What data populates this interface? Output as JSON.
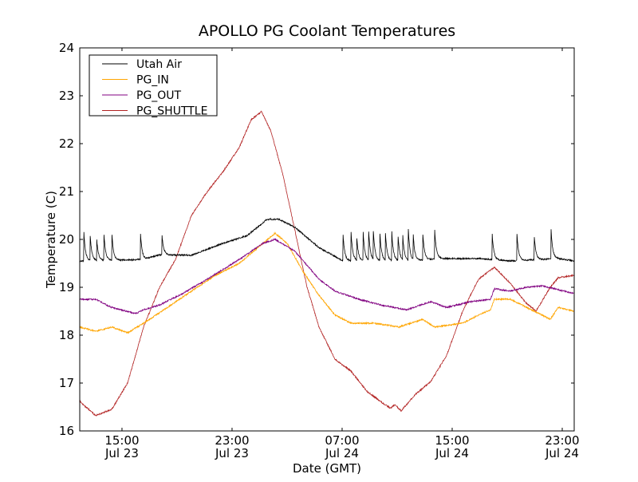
{
  "chart_data": {
    "type": "line",
    "title": "APOLLO PG Coolant Temperatures",
    "xlabel": "Date (GMT)",
    "ylabel": "Temperature (C)",
    "x_units": "hours since Jul 23 00:00 GMT",
    "xlim": [
      11.93,
      47.87
    ],
    "ylim": [
      16,
      24
    ],
    "yticks": [
      16,
      17,
      18,
      19,
      20,
      21,
      22,
      23,
      24
    ],
    "xticks": [
      {
        "value": 15,
        "time": "15:00",
        "date": "Jul 23"
      },
      {
        "value": 23,
        "time": "23:00",
        "date": "Jul 23"
      },
      {
        "value": 31,
        "time": "07:00",
        "date": "Jul 24"
      },
      {
        "value": 39,
        "time": "15:00",
        "date": "Jul 24"
      },
      {
        "value": 47,
        "time": "23:00",
        "date": "Jul 24"
      }
    ],
    "grid": false,
    "legend_position": "top-left",
    "series": [
      {
        "name": "Utah Air",
        "color": "#000000",
        "points": [
          [
            11.93,
            19.55
          ],
          [
            16.57,
            19.58
          ],
          [
            17.73,
            19.68
          ],
          [
            20.05,
            19.67
          ],
          [
            22.36,
            19.92
          ],
          [
            24.1,
            20.08
          ],
          [
            25.55,
            20.42
          ],
          [
            26.42,
            20.42
          ],
          [
            27.58,
            20.25
          ],
          [
            29.32,
            19.83
          ],
          [
            31.06,
            19.55
          ],
          [
            33.96,
            19.55
          ],
          [
            36.28,
            19.55
          ],
          [
            38.02,
            19.6
          ],
          [
            40.92,
            19.6
          ],
          [
            43.23,
            19.55
          ],
          [
            46.71,
            19.6
          ],
          [
            47.87,
            19.55
          ]
        ],
        "spikes": [
          [
            12.22,
            20.2
          ],
          [
            12.68,
            20.1
          ],
          [
            13.15,
            20.05
          ],
          [
            13.67,
            20.2
          ],
          [
            14.25,
            20.2
          ],
          [
            16.34,
            20.15
          ],
          [
            17.9,
            20.12
          ],
          [
            31.06,
            20.15
          ],
          [
            31.64,
            20.2
          ],
          [
            32.05,
            20.1
          ],
          [
            32.51,
            20.25
          ],
          [
            32.92,
            20.2
          ],
          [
            33.26,
            20.2
          ],
          [
            33.73,
            20.2
          ],
          [
            34.13,
            20.2
          ],
          [
            34.6,
            20.2
          ],
          [
            35.06,
            20.1
          ],
          [
            35.41,
            20.05
          ],
          [
            35.81,
            20.2
          ],
          [
            36.16,
            20.1
          ],
          [
            36.86,
            20.15
          ],
          [
            37.73,
            20.2
          ],
          [
            41.9,
            20.15
          ],
          [
            43.7,
            20.15
          ],
          [
            44.97,
            20.05
          ],
          [
            46.19,
            20.2
          ]
        ]
      },
      {
        "name": "PG_IN",
        "color": "#ffa500",
        "points": [
          [
            11.93,
            18.17
          ],
          [
            13.09,
            18.08
          ],
          [
            14.25,
            18.17
          ],
          [
            15.41,
            18.05
          ],
          [
            16.57,
            18.25
          ],
          [
            18.31,
            18.58
          ],
          [
            20.05,
            18.92
          ],
          [
            21.79,
            19.25
          ],
          [
            23.52,
            19.5
          ],
          [
            25.26,
            19.92
          ],
          [
            26.13,
            20.13
          ],
          [
            27.0,
            19.92
          ],
          [
            28.16,
            19.33
          ],
          [
            29.32,
            18.83
          ],
          [
            30.48,
            18.42
          ],
          [
            31.64,
            18.25
          ],
          [
            33.38,
            18.25
          ],
          [
            35.12,
            18.17
          ],
          [
            36.86,
            18.33
          ],
          [
            37.73,
            18.17
          ],
          [
            39.76,
            18.25
          ],
          [
            40.92,
            18.42
          ],
          [
            41.79,
            18.53
          ],
          [
            42.07,
            18.75
          ],
          [
            43.23,
            18.75
          ],
          [
            44.97,
            18.5
          ],
          [
            46.13,
            18.33
          ],
          [
            46.71,
            18.58
          ],
          [
            47.87,
            18.5
          ]
        ]
      },
      {
        "name": "PG_OUT",
        "color": "#800080",
        "points": [
          [
            11.93,
            18.75
          ],
          [
            13.09,
            18.75
          ],
          [
            14.25,
            18.58
          ],
          [
            15.99,
            18.45
          ],
          [
            16.57,
            18.53
          ],
          [
            17.73,
            18.63
          ],
          [
            19.47,
            18.88
          ],
          [
            21.21,
            19.17
          ],
          [
            23.52,
            19.58
          ],
          [
            25.26,
            19.92
          ],
          [
            26.13,
            20.0
          ],
          [
            27.58,
            19.75
          ],
          [
            29.32,
            19.17
          ],
          [
            30.48,
            18.92
          ],
          [
            32.22,
            18.75
          ],
          [
            33.96,
            18.62
          ],
          [
            35.7,
            18.53
          ],
          [
            37.44,
            18.7
          ],
          [
            38.6,
            18.58
          ],
          [
            40.34,
            18.7
          ],
          [
            41.79,
            18.75
          ],
          [
            42.07,
            18.97
          ],
          [
            43.23,
            18.92
          ],
          [
            44.39,
            19.0
          ],
          [
            45.55,
            19.03
          ],
          [
            47.87,
            18.87
          ]
        ]
      },
      {
        "name": "PG_SHUTTLE",
        "color": "#b22222",
        "points": [
          [
            11.93,
            16.62
          ],
          [
            13.09,
            16.32
          ],
          [
            14.25,
            16.45
          ],
          [
            15.41,
            17.0
          ],
          [
            16.57,
            18.17
          ],
          [
            17.73,
            19.0
          ],
          [
            18.89,
            19.58
          ],
          [
            20.05,
            20.5
          ],
          [
            21.21,
            21.0
          ],
          [
            22.36,
            21.42
          ],
          [
            23.52,
            21.92
          ],
          [
            24.39,
            22.5
          ],
          [
            25.15,
            22.67
          ],
          [
            25.84,
            22.25
          ],
          [
            26.71,
            21.33
          ],
          [
            27.58,
            20.17
          ],
          [
            28.45,
            19.0
          ],
          [
            29.32,
            18.17
          ],
          [
            30.48,
            17.5
          ],
          [
            31.64,
            17.25
          ],
          [
            32.8,
            16.83
          ],
          [
            33.96,
            16.58
          ],
          [
            34.54,
            16.47
          ],
          [
            34.83,
            16.55
          ],
          [
            35.29,
            16.42
          ],
          [
            36.28,
            16.75
          ],
          [
            37.44,
            17.03
          ],
          [
            38.6,
            17.58
          ],
          [
            39.76,
            18.5
          ],
          [
            40.92,
            19.17
          ],
          [
            42.07,
            19.42
          ],
          [
            43.23,
            19.08
          ],
          [
            44.39,
            18.67
          ],
          [
            45.09,
            18.5
          ],
          [
            46.13,
            19.0
          ],
          [
            46.71,
            19.2
          ],
          [
            47.87,
            19.25
          ]
        ]
      }
    ]
  }
}
